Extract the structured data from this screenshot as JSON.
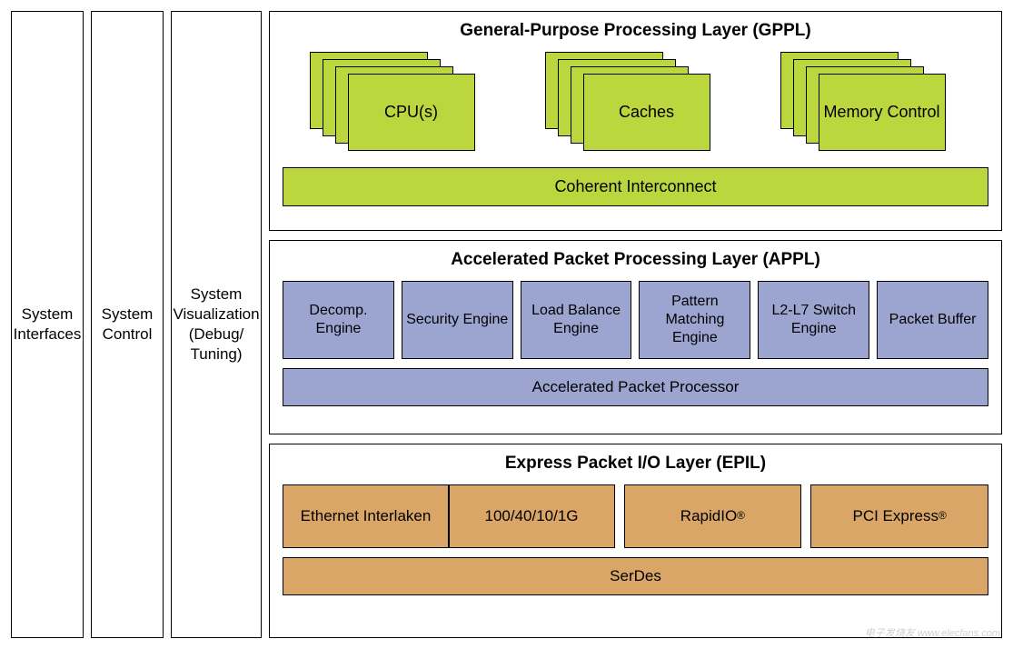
{
  "columns": {
    "interfaces": "System Interfaces",
    "control": "System Control",
    "visualization": "System Visualization (Debug/ Tuning)"
  },
  "gppl": {
    "title": "General-Purpose Processing Layer (GPPL)",
    "stacks": [
      {
        "ellipsis": "•••",
        "label": "CPU(s)"
      },
      {
        "ellipsis": "•••",
        "label": "Caches"
      },
      {
        "ellipsis": "•••",
        "label": "Memory Control"
      }
    ],
    "bar": "Coherent Interconnect",
    "block_color": "#bcd63e",
    "border_color": "#000000"
  },
  "appl": {
    "title": "Accelerated Packet Processing Layer (APPL)",
    "blocks": [
      "Decomp. Engine",
      "Security Engine",
      "Load Balance Engine",
      "Pattern Matching Engine",
      "L2-L7 Switch Engine",
      "Packet Buffer"
    ],
    "bar": "Accelerated Packet Processor",
    "block_color": "#9ba5d0"
  },
  "epil": {
    "title": "Express Packet I/O Layer (EPIL)",
    "pair_left": "Ethernet Interlaken",
    "pair_right": "100/40/10/1G",
    "block3": "RapidIO",
    "block4": "PCI Express",
    "reg": "®",
    "bar": "SerDes",
    "block_color": "#d9a668"
  },
  "watermark": "电子发烧友 www.elecfans.com",
  "styling": {
    "font_family": "Arial, Helvetica, sans-serif",
    "title_fontsize": 19,
    "label_fontsize": 17,
    "background": "#ffffff",
    "border_width": 1.5
  }
}
